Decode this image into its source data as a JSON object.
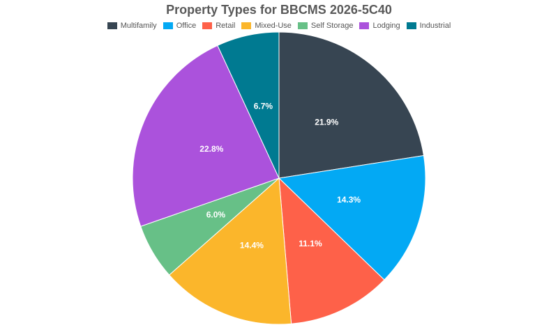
{
  "chart_data": {
    "type": "pie",
    "title": "Property Types for BBCMS 2026-5C40",
    "legend_position": "top",
    "start_angle": "top, clockwise",
    "slices": [
      {
        "label": "Multifamily",
        "value": 21.9,
        "display": "21.9%",
        "color": "#374552"
      },
      {
        "label": "Office",
        "value": 14.3,
        "display": "14.3%",
        "color": "#03a9f4"
      },
      {
        "label": "Retail",
        "value": 11.1,
        "display": "11.1%",
        "color": "#fe6149"
      },
      {
        "label": "Mixed-Use",
        "value": 14.4,
        "display": "14.4%",
        "color": "#fbb62b"
      },
      {
        "label": "Self Storage",
        "value": 6.0,
        "display": "6.0%",
        "color": "#67c087"
      },
      {
        "label": "Lodging",
        "value": 22.8,
        "display": "22.8%",
        "color": "#ab52dc"
      },
      {
        "label": "Industrial",
        "value": 6.7,
        "display": "6.7%",
        "color": "#007a91"
      }
    ]
  }
}
